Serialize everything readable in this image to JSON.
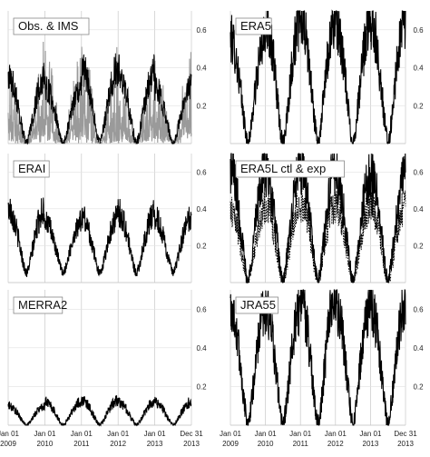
{
  "figure": {
    "x_tick_labels": [
      [
        "Jan 01",
        "2009"
      ],
      [
        "Jan 01",
        "2010"
      ],
      [
        "Jan 01",
        "2011"
      ],
      [
        "Jan 01",
        "2012"
      ],
      [
        "Jan 01",
        "2013"
      ],
      [
        "Dec 31",
        "2013"
      ]
    ],
    "y_tick_labels": [
      "0.2",
      "0.4",
      "0.6"
    ]
  },
  "chart_data": [
    {
      "type": "line",
      "title": "Obs. & IMS",
      "xlabel": "",
      "ylabel": "",
      "x_range": [
        "2009-01-01",
        "2013-12-31"
      ],
      "ylim": [
        0,
        0.7
      ],
      "grid": "vertical",
      "series": [
        {
          "style": "thin grey spikes",
          "color": "#9a9a9a",
          "seasonal_min": 0.0,
          "seasonal_max": [
            0.55,
            0.52,
            0.6,
            0.58,
            0.5
          ]
        },
        {
          "style": "black",
          "color": "#000000",
          "seasonal_min": 0.0,
          "seasonal_max": [
            0.35,
            0.3,
            0.4,
            0.38,
            0.3
          ]
        }
      ]
    },
    {
      "type": "line",
      "title": "ERA5",
      "xlabel": "",
      "ylabel": "",
      "x_range": [
        "2009-01-01",
        "2013-12-31"
      ],
      "ylim": [
        0,
        0.7
      ],
      "grid": "vertical",
      "series": [
        {
          "style": "black",
          "color": "#000000",
          "seasonal_min": 0.0,
          "seasonal_max": [
            0.55,
            0.65,
            0.66,
            0.63,
            0.65
          ]
        }
      ]
    },
    {
      "type": "line",
      "title": "ERAI",
      "xlabel": "",
      "ylabel": "",
      "x_range": [
        "2009-01-01",
        "2013-12-31"
      ],
      "ylim": [
        0,
        0.7
      ],
      "grid": "vertical",
      "series": [
        {
          "style": "black",
          "color": "#000000",
          "seasonal_min": 0.05,
          "seasonal_max": [
            0.4,
            0.33,
            0.36,
            0.38,
            0.35
          ]
        }
      ]
    },
    {
      "type": "line",
      "title": "ERA5L ctl & exp",
      "xlabel": "",
      "ylabel": "",
      "x_range": [
        "2009-01-01",
        "2013-12-31"
      ],
      "ylim": [
        0,
        0.7
      ],
      "grid": "vertical",
      "series": [
        {
          "style": "black solid",
          "color": "#000000",
          "seasonal_min": 0.0,
          "seasonal_max": [
            0.62,
            0.6,
            0.62,
            0.58,
            0.6
          ]
        },
        {
          "style": "dotted",
          "color": "#000000",
          "seasonal_min": 0.0,
          "seasonal_max": [
            0.4,
            0.42,
            0.43,
            0.42,
            0.42
          ]
        }
      ]
    },
    {
      "type": "line",
      "title": "MERRA2",
      "xlabel": "",
      "ylabel": "",
      "x_range": [
        "2009-01-01",
        "2013-12-31"
      ],
      "ylim": [
        0,
        0.7
      ],
      "grid": "vertical",
      "series": [
        {
          "style": "black",
          "color": "#000000",
          "seasonal_min": 0.0,
          "seasonal_max": [
            0.1,
            0.12,
            0.13,
            0.12,
            0.12
          ]
        }
      ]
    },
    {
      "type": "line",
      "title": "JRA55",
      "xlabel": "",
      "ylabel": "",
      "x_range": [
        "2009-01-01",
        "2013-12-31"
      ],
      "ylim": [
        0,
        0.7
      ],
      "grid": "vertical",
      "series": [
        {
          "style": "black",
          "color": "#000000",
          "seasonal_min": 0.0,
          "seasonal_max": [
            0.6,
            0.6,
            0.66,
            0.62,
            0.62
          ]
        }
      ]
    }
  ]
}
